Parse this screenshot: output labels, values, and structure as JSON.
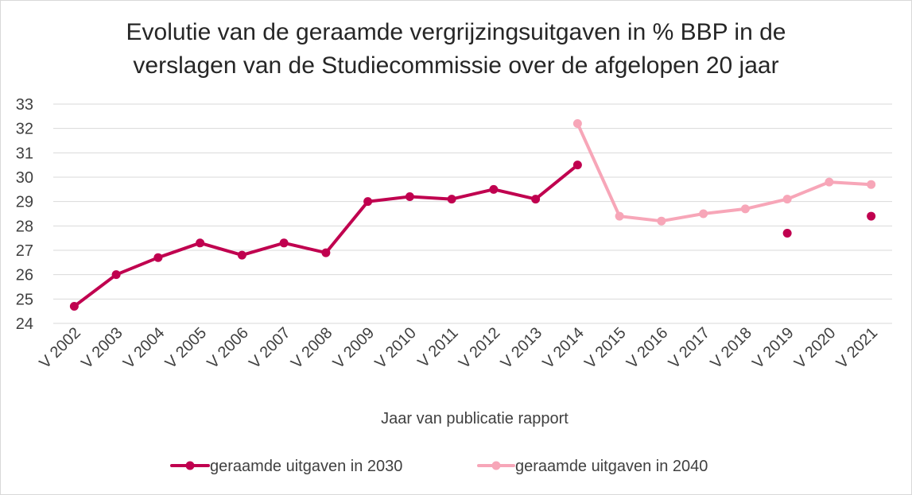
{
  "chart_data": {
    "type": "line",
    "title_line1": "Evolutie van de geraamde vergrijzingsuitgaven in % BBP in de",
    "title_line2": "verslagen van de Studiecommissie over de afgelopen 20 jaar",
    "xlabel": "Jaar van publicatie rapport",
    "ylabel": "",
    "ylim": [
      24,
      33
    ],
    "yticks": [
      "24",
      "25",
      "26",
      "27",
      "28",
      "29",
      "30",
      "31",
      "32",
      "33"
    ],
    "categories": [
      "V 2002",
      "V 2003",
      "V 2004",
      "V 2005",
      "V 2006",
      "V 2007",
      "V 2008",
      "V 2009",
      "V 2010",
      "V 2011",
      "V 2012",
      "V 2013",
      "V 2014",
      "V 2015",
      "V 2016",
      "V 2017",
      "V 2018",
      "V 2019",
      "V 2020",
      "V 2021"
    ],
    "series": [
      {
        "name": "geraamde uitgaven in 2030",
        "color": "#c0004f",
        "values": [
          24.7,
          26.0,
          26.7,
          27.3,
          26.8,
          27.3,
          26.9,
          29.0,
          29.2,
          29.1,
          29.5,
          29.1,
          30.5,
          null,
          null,
          null,
          null,
          27.7,
          null,
          28.4
        ]
      },
      {
        "name": "geraamde uitgaven in 2040",
        "color": "#f7a6b8",
        "values": [
          null,
          null,
          null,
          null,
          null,
          null,
          null,
          null,
          null,
          null,
          null,
          null,
          32.2,
          28.4,
          28.2,
          28.5,
          28.7,
          29.1,
          29.8,
          29.7
        ]
      }
    ],
    "grid": true,
    "legend_position": "bottom"
  }
}
